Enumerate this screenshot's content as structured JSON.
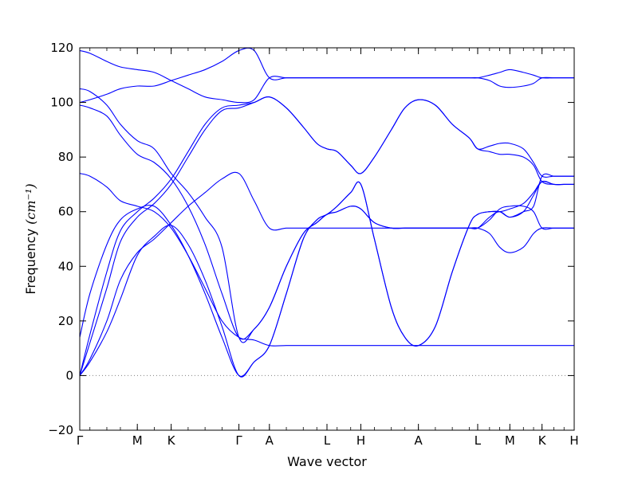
{
  "chart_data": {
    "type": "line",
    "title": "",
    "xlabel": "Wave vector",
    "ylabel": "Frequency",
    "ylabel_unit": "(cm⁻¹)",
    "ylim": [
      -20,
      120
    ],
    "yticks": [
      -20,
      0,
      20,
      40,
      60,
      80,
      100,
      120
    ],
    "grid": false,
    "line_color": "#0000ff",
    "zero_line_color": "#808080",
    "path_breaks": [
      0,
      1.7,
      2.7,
      4.7,
      5.6,
      7.3,
      8.3,
      10.0,
      11.75,
      12.7,
      13.65,
      14.6
    ],
    "xticks": [
      {
        "x": 0,
        "label": "Γ"
      },
      {
        "x": 1.7,
        "label": "M"
      },
      {
        "x": 2.7,
        "label": "K"
      },
      {
        "x": 4.7,
        "label": "Γ"
      },
      {
        "x": 5.6,
        "label": "A"
      },
      {
        "x": 7.3,
        "label": "L"
      },
      {
        "x": 8.3,
        "label": "H"
      },
      {
        "x": 10.0,
        "label": "A"
      },
      {
        "x": 11.75,
        "label": "L"
      },
      {
        "x": 12.7,
        "label": "M"
      },
      {
        "x": 13.65,
        "label": "K"
      },
      {
        "x": 14.6,
        "label": "H"
      }
    ],
    "series": [
      {
        "x": [
          0,
          0.3,
          0.8,
          1.2,
          1.7,
          2.2,
          2.7,
          3.2,
          3.7,
          4.2,
          4.7,
          5.15,
          5.6,
          6.1,
          6.6,
          7.0,
          7.3,
          7.6,
          8.0,
          8.3,
          8.7,
          9.2,
          9.6,
          10.0,
          10.5,
          11.0,
          11.5,
          11.75,
          12.1,
          12.4,
          12.7,
          13.1,
          13.4,
          13.65,
          14.0,
          14.3,
          14.6
        ],
        "y": [
          0,
          15,
          38,
          53,
          60,
          65,
          72,
          82,
          92,
          98,
          99,
          100,
          102,
          98,
          91,
          85,
          83,
          82,
          77,
          74,
          80,
          90,
          98,
          101,
          99,
          92,
          87,
          83,
          84,
          85,
          85,
          83,
          78,
          73,
          73,
          73,
          73
        ]
      },
      {
        "x": [
          0,
          0.3,
          0.8,
          1.2,
          1.7,
          2.2,
          2.7,
          3.2,
          3.7,
          4.2,
          4.7,
          5.15,
          5.6,
          6.1,
          6.6,
          7.0,
          7.3,
          7.6,
          8.0,
          8.3,
          8.7,
          9.2,
          9.6,
          10.0,
          10.5,
          11.0,
          11.5,
          11.75,
          12.1,
          12.4,
          12.7,
          13.1,
          13.4,
          13.65,
          14.0,
          14.3,
          14.6
        ],
        "y": [
          0,
          12,
          32,
          49,
          58,
          63,
          70,
          80,
          90,
          97,
          98,
          100,
          102,
          98,
          91,
          85,
          83,
          82,
          77,
          74,
          80,
          90,
          98,
          101,
          99,
          92,
          87,
          83,
          82,
          81,
          81,
          80,
          77,
          71,
          70,
          70,
          70
        ]
      },
      {
        "x": [
          0,
          0.3,
          0.8,
          1.2,
          1.7,
          2.2,
          2.7,
          3.2,
          3.7,
          4.2,
          4.7,
          5.15,
          5.6,
          6.1,
          6.6,
          7.0,
          7.3,
          7.6,
          8.0,
          8.3,
          8.7,
          9.2,
          9.6,
          10.0,
          10.5,
          11.0,
          11.5,
          11.75,
          12.1,
          12.4,
          12.7,
          13.1,
          13.4,
          13.65,
          14.0,
          14.3,
          14.6
        ],
        "y": [
          0,
          6,
          20,
          35,
          45,
          50,
          56,
          62,
          67,
          72,
          74,
          64,
          54,
          54,
          54,
          54,
          54,
          54,
          54,
          54,
          54,
          54,
          54,
          54,
          54,
          54,
          54,
          54,
          52,
          47,
          45,
          47,
          52,
          54,
          54,
          54,
          54
        ]
      },
      {
        "x": [
          0,
          0.3,
          0.8,
          1.2,
          1.7,
          2.2,
          2.7,
          3.2,
          3.7,
          4.2,
          4.7,
          5.15,
          5.6,
          6.1,
          6.6,
          7.0,
          7.3,
          7.6,
          8.0,
          8.3,
          8.7,
          9.2,
          9.6,
          10.0,
          10.5,
          11.0,
          11.5,
          11.75,
          12.1,
          12.4,
          12.7,
          13.1,
          13.4,
          13.65,
          14.0,
          14.3,
          14.6
        ],
        "y": [
          0,
          5,
          16,
          28,
          44,
          51,
          55,
          48,
          35,
          18,
          0,
          5,
          11,
          30,
          50,
          57,
          59,
          62,
          67,
          70,
          50,
          25,
          14,
          11,
          18,
          38,
          55,
          59,
          60,
          60,
          61,
          63,
          67,
          71,
          70,
          70,
          70
        ]
      },
      {
        "x": [
          0,
          0.3,
          0.8,
          1.2,
          1.7,
          2.2,
          2.7,
          3.2,
          3.7,
          4.2,
          4.7,
          5.15,
          5.6,
          6.1,
          6.6,
          7.0,
          7.3,
          7.6,
          8.0,
          8.3,
          8.7,
          9.2,
          9.6,
          10.0,
          10.5,
          11.0,
          11.5,
          11.75,
          12.1,
          12.4,
          12.7,
          13.1,
          13.4,
          13.65,
          14.0,
          14.3,
          14.6
        ],
        "y": [
          14,
          30,
          48,
          57,
          61,
          62,
          55,
          44,
          30,
          14,
          0,
          5,
          11,
          30,
          50,
          57,
          59,
          62,
          67,
          70,
          50,
          25,
          14,
          11,
          18,
          38,
          55,
          59,
          60,
          60,
          58,
          60,
          66,
          71,
          70,
          70,
          70
        ]
      },
      {
        "x": [
          0,
          0.3,
          0.8,
          1.2,
          1.7,
          2.2,
          2.7,
          3.2,
          3.7,
          4.2,
          4.7,
          5.15,
          5.6,
          6.1,
          6.6,
          7.0,
          7.3,
          7.6,
          8.0,
          8.3,
          8.7,
          9.2,
          9.6,
          10.0,
          10.5,
          11.0,
          11.5,
          11.75,
          12.1,
          12.4,
          12.7,
          13.1,
          13.4,
          13.65,
          14.0,
          14.3,
          14.6
        ],
        "y": [
          74,
          73,
          69,
          64,
          62,
          60,
          54,
          44,
          32,
          20,
          14,
          13,
          11,
          11,
          11,
          11,
          11,
          11,
          11,
          11,
          11,
          11,
          11,
          11,
          11,
          11,
          11,
          11,
          11,
          11,
          11,
          11,
          11,
          11,
          11,
          11,
          11
        ]
      },
      {
        "x": [
          0,
          0.3,
          0.8,
          1.2,
          1.7,
          2.2,
          2.7,
          3.2,
          3.7,
          4.2,
          4.7,
          5.15,
          5.6,
          6.1,
          6.6,
          7.0,
          7.3,
          7.6,
          8.0,
          8.3,
          8.7,
          9.2,
          9.6,
          10.0,
          10.5,
          11.0,
          11.5,
          11.75,
          12.1,
          12.4,
          12.7,
          13.1,
          13.4,
          13.65,
          14.0,
          14.3,
          14.6
        ],
        "y": [
          99,
          98,
          95,
          88,
          81,
          78,
          72,
          62,
          48,
          30,
          14,
          17,
          25,
          40,
          52,
          56,
          59,
          60,
          62,
          61,
          56,
          54,
          54,
          54,
          54,
          54,
          54,
          54,
          57,
          61,
          62,
          62,
          60,
          54,
          54,
          54,
          54
        ]
      },
      {
        "x": [
          0,
          0.3,
          0.8,
          1.2,
          1.7,
          2.2,
          2.7,
          3.2,
          3.7,
          4.2,
          4.7,
          5.15,
          5.6,
          6.1,
          6.6,
          7.0,
          7.3,
          7.6,
          8.0,
          8.3,
          8.7,
          9.2,
          9.6,
          10.0,
          10.5,
          11.0,
          11.5,
          11.75,
          12.1,
          12.4,
          12.7,
          13.1,
          13.4,
          13.65,
          14.0,
          14.3,
          14.6
        ],
        "y": [
          105,
          104,
          99,
          92,
          86,
          83,
          74,
          67,
          58,
          47,
          14,
          17,
          25,
          40,
          52,
          56,
          59,
          60,
          62,
          61,
          56,
          54,
          54,
          54,
          54,
          54,
          54,
          54,
          58,
          60,
          58,
          60,
          62,
          73,
          73,
          73,
          73
        ]
      },
      {
        "x": [
          0,
          0.3,
          0.8,
          1.2,
          1.7,
          2.2,
          2.7,
          3.2,
          3.7,
          4.2,
          4.7,
          5.15,
          5.6,
          6.1,
          6.6,
          7.0,
          7.3,
          7.6,
          8.0,
          8.3,
          8.7,
          9.2,
          9.6,
          10.0,
          10.5,
          11.0,
          11.5,
          11.75,
          12.1,
          12.4,
          12.7,
          13.1,
          13.4,
          13.65,
          14.0,
          14.3,
          14.6
        ],
        "y": [
          100,
          101,
          103,
          105,
          106,
          106,
          108,
          110,
          112,
          115,
          119,
          119,
          109,
          109,
          109,
          109,
          109,
          109,
          109,
          109,
          109,
          109,
          109,
          109,
          109,
          109,
          109,
          109,
          110,
          111,
          112,
          111,
          110,
          109,
          109,
          109,
          109
        ]
      },
      {
        "x": [
          0,
          0.3,
          0.8,
          1.2,
          1.7,
          2.2,
          2.7,
          3.2,
          3.7,
          4.2,
          4.7,
          5.15,
          5.6,
          6.1,
          6.6,
          7.0,
          7.3,
          7.6,
          8.0,
          8.3,
          8.7,
          9.2,
          9.6,
          10.0,
          10.5,
          11.0,
          11.5,
          11.75,
          12.1,
          12.4,
          12.7,
          13.1,
          13.4,
          13.65,
          14.0,
          14.3,
          14.6
        ],
        "y": [
          119,
          118,
          115,
          113,
          112,
          111,
          108,
          105,
          102,
          101,
          100,
          101,
          109,
          109,
          109,
          109,
          109,
          109,
          109,
          109,
          109,
          109,
          109,
          109,
          109,
          109,
          109,
          109,
          108,
          106,
          105.5,
          106,
          107,
          109,
          109,
          109,
          109
        ]
      }
    ]
  }
}
